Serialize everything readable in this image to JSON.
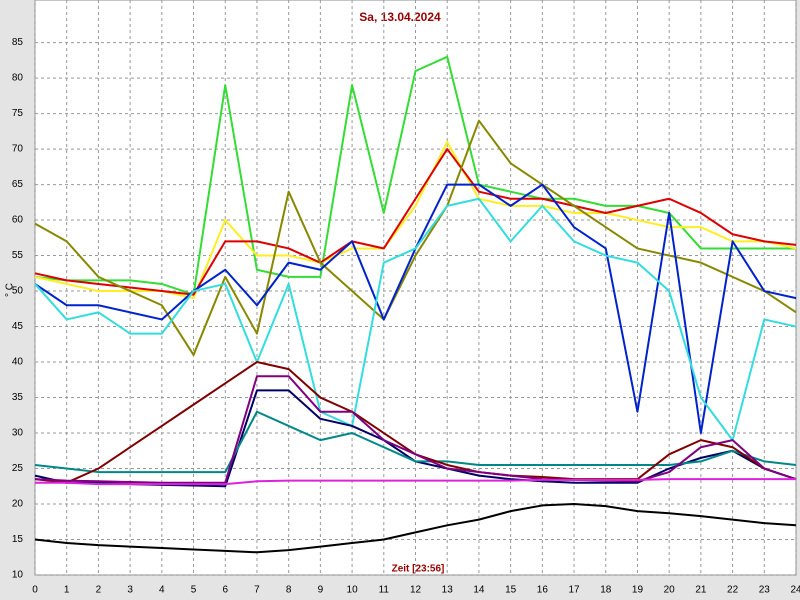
{
  "chart_data": {
    "type": "line",
    "title": "Sa, 13.04.2024",
    "xlabel": "Zeit [23:56]",
    "ylabel": "° C",
    "x": [
      0,
      1,
      2,
      3,
      4,
      5,
      6,
      7,
      8,
      9,
      10,
      11,
      12,
      13,
      14,
      15,
      16,
      17,
      18,
      19,
      20,
      21,
      22,
      23,
      24
    ],
    "xlim": [
      0,
      24
    ],
    "xticks": [
      0,
      1,
      2,
      3,
      4,
      5,
      6,
      7,
      8,
      9,
      10,
      11,
      12,
      13,
      14,
      15,
      16,
      17,
      18,
      19,
      20,
      21,
      22,
      23,
      24
    ],
    "ylim": [
      10,
      91
    ],
    "yticks": [
      10,
      15,
      20,
      25,
      30,
      35,
      40,
      45,
      50,
      55,
      60,
      65,
      70,
      75,
      80,
      85
    ],
    "grid": true,
    "series": [
      {
        "color": "#33dd33",
        "values": [
          52,
          51.5,
          51.5,
          51.5,
          51,
          49.5,
          79,
          53,
          52,
          52,
          79,
          61,
          81,
          83,
          65,
          64,
          63,
          63,
          62,
          62,
          61,
          56,
          56,
          56,
          56
        ]
      },
      {
        "color": "#ffee22",
        "values": [
          52,
          51,
          50,
          50,
          50,
          49,
          60,
          55,
          55,
          54,
          56,
          56,
          62,
          71,
          63,
          62,
          62,
          61,
          61,
          60,
          59,
          59,
          57,
          57,
          56
        ]
      },
      {
        "color": "#dd0000",
        "values": [
          52.5,
          51.5,
          51,
          50.5,
          50,
          49.5,
          57,
          57,
          56,
          54,
          57,
          56,
          63,
          70,
          64,
          63,
          63,
          62,
          61,
          62,
          63,
          61,
          58,
          57,
          56.5
        ]
      },
      {
        "color": "#888800",
        "values": [
          59.5,
          57,
          52,
          50,
          48,
          41,
          52,
          44,
          64,
          54,
          50,
          46,
          55,
          62,
          74,
          68,
          65,
          62,
          59,
          56,
          55,
          54,
          52,
          50,
          47
        ]
      },
      {
        "color": "#0022cc",
        "values": [
          51,
          48,
          48,
          47,
          46,
          50,
          53,
          48,
          54,
          53,
          57,
          46,
          56,
          65,
          65,
          62,
          65,
          59,
          56,
          33,
          61,
          30,
          57,
          50,
          49
        ]
      },
      {
        "color": "#33dddd",
        "values": [
          51,
          46,
          47,
          44,
          44,
          50,
          51,
          40,
          51,
          33,
          31,
          54,
          56,
          62,
          63,
          57,
          62,
          57,
          55,
          54,
          50,
          35,
          29,
          46,
          45
        ]
      },
      {
        "color": "#000066",
        "values": [
          24,
          23,
          23,
          22.8,
          22.7,
          22.6,
          22.5,
          36,
          36,
          32,
          31,
          29,
          26,
          25,
          24,
          23.5,
          23.2,
          23,
          23,
          23,
          25,
          26.5,
          27.5,
          25,
          23.5
        ]
      },
      {
        "color": "#008888",
        "values": [
          25.5,
          25,
          24.5,
          24.5,
          24.5,
          24.5,
          24.5,
          33,
          31,
          29,
          30,
          28,
          26,
          26,
          25.5,
          25.5,
          25.5,
          25.5,
          25.5,
          25.5,
          25.5,
          26,
          27.5,
          26,
          25.5
        ]
      },
      {
        "color": "#800000",
        "values": [
          23.5,
          23,
          25,
          28,
          31,
          34,
          37,
          40,
          39,
          35,
          33,
          30,
          27,
          25.5,
          24.5,
          24,
          23.8,
          23.5,
          23.5,
          23.5,
          27,
          29,
          28,
          25,
          23.5
        ]
      },
      {
        "color": "#800080",
        "values": [
          23.5,
          23.3,
          23.2,
          23.1,
          23,
          23,
          23,
          38,
          38,
          33,
          33,
          29,
          27,
          25,
          24.5,
          24,
          23.5,
          23.4,
          23.3,
          23.2,
          24.5,
          28,
          29,
          25,
          23.5
        ]
      },
      {
        "color": "#dd22dd",
        "values": [
          23,
          23,
          22.8,
          22.8,
          22.8,
          22.8,
          22.8,
          23.2,
          23.3,
          23.3,
          23.3,
          23.3,
          23.3,
          23.3,
          23.3,
          23.3,
          23.4,
          23.4,
          23.4,
          23.4,
          23.5,
          23.5,
          23.5,
          23.5,
          23.5
        ]
      },
      {
        "color": "#000000",
        "values": [
          15,
          14.5,
          14.2,
          14,
          13.8,
          13.6,
          13.4,
          13.2,
          13.5,
          14,
          14.5,
          15,
          16,
          17,
          17.8,
          19,
          19.8,
          20,
          19.7,
          19,
          18.7,
          18.3,
          17.8,
          17.3,
          17
        ]
      }
    ]
  }
}
